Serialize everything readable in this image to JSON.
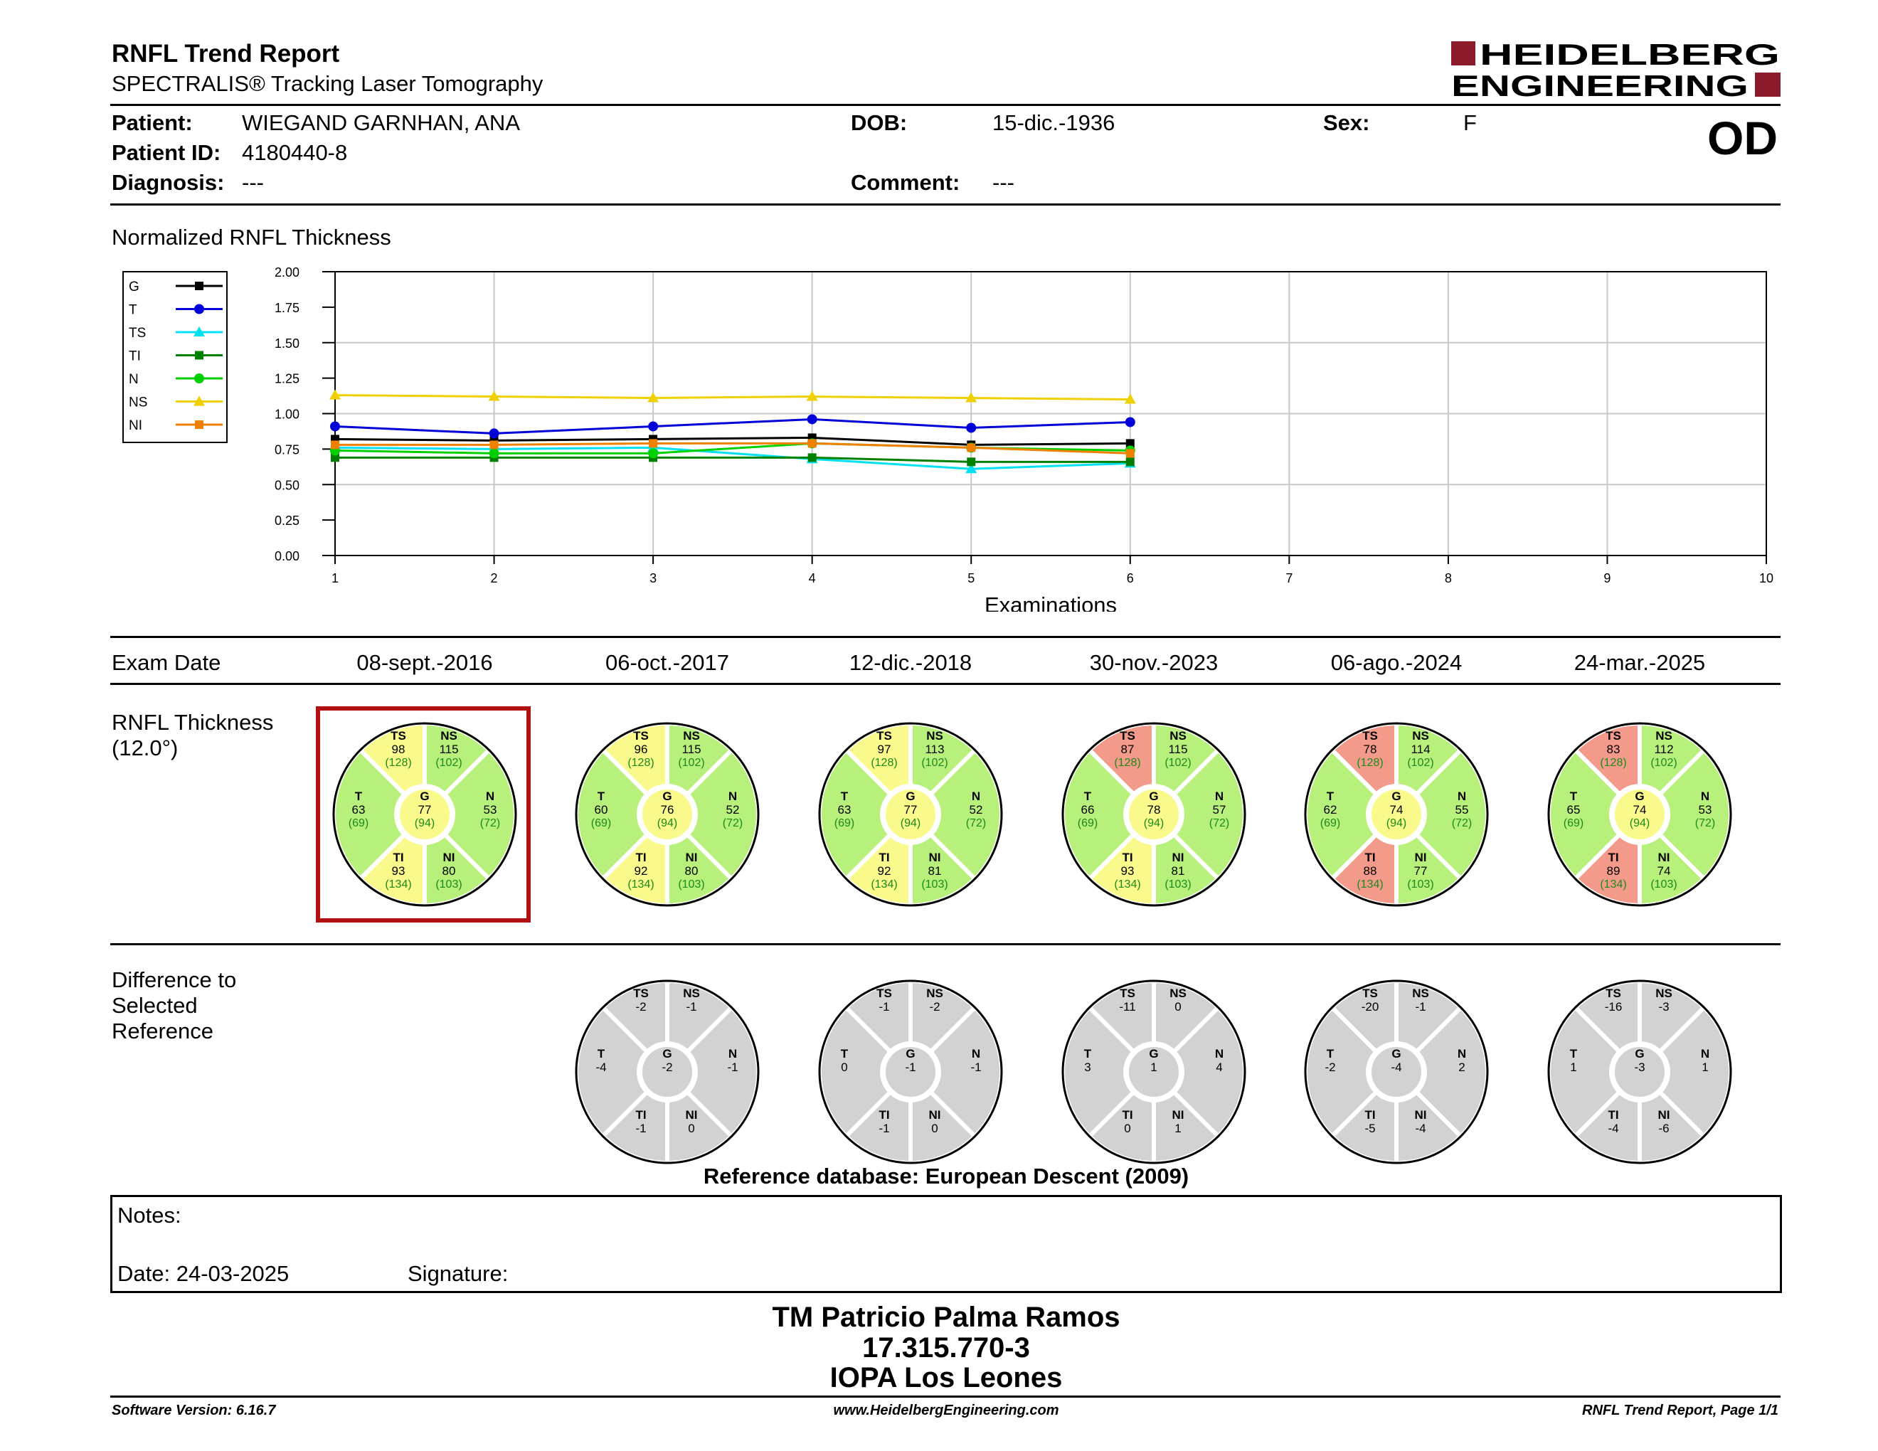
{
  "header": {
    "title": "RNFL Trend Report",
    "subtitle": "SPECTRALIS® Tracking Laser Tomography",
    "logo_line1": "HEIDELBERG",
    "logo_line2": "ENGINEERING",
    "eye": "OD"
  },
  "patient": {
    "patient_label": "Patient:",
    "patient_value": "WIEGAND GARNHAN, ANA",
    "dob_label": "DOB:",
    "dob_value": "15-dic.-1936",
    "sex_label": "Sex:",
    "sex_value": "F",
    "id_label": "Patient ID:",
    "id_value": "4180440-8",
    "diagnosis_label": "Diagnosis:",
    "diagnosis_value": "---",
    "comment_label": "Comment:",
    "comment_value": "---"
  },
  "chart_title": "Normalized RNFL Thickness",
  "chart_data": {
    "type": "line",
    "xlabel": "Examinations",
    "x": [
      1,
      2,
      3,
      4,
      5,
      6
    ],
    "xlim": [
      1,
      10
    ],
    "ylim": [
      0,
      2
    ],
    "xticks": [
      "1",
      "2",
      "3",
      "4",
      "5",
      "6",
      "7",
      "8",
      "9",
      "10"
    ],
    "yticks": [
      "0.00",
      "0.25",
      "0.50",
      "0.75",
      "1.00",
      "1.25",
      "1.50",
      "1.75",
      "2.00"
    ],
    "grid": true,
    "legend_position": "left",
    "series": [
      {
        "name": "G",
        "color": "#000000",
        "marker": "square",
        "values": [
          0.82,
          0.81,
          0.82,
          0.83,
          0.78,
          0.79
        ]
      },
      {
        "name": "T",
        "color": "#0000d8",
        "marker": "circle",
        "values": [
          0.91,
          0.86,
          0.91,
          0.96,
          0.9,
          0.94
        ]
      },
      {
        "name": "TS",
        "color": "#00e0f0",
        "marker": "triangle",
        "values": [
          0.76,
          0.75,
          0.76,
          0.68,
          0.61,
          0.65
        ]
      },
      {
        "name": "TI",
        "color": "#008000",
        "marker": "square",
        "values": [
          0.69,
          0.69,
          0.69,
          0.69,
          0.66,
          0.66
        ]
      },
      {
        "name": "N",
        "color": "#00d000",
        "marker": "circle",
        "values": [
          0.74,
          0.72,
          0.72,
          0.79,
          0.76,
          0.74
        ]
      },
      {
        "name": "NS",
        "color": "#f0d000",
        "marker": "triangle",
        "values": [
          1.13,
          1.12,
          1.11,
          1.12,
          1.11,
          1.1
        ]
      },
      {
        "name": "NI",
        "color": "#f08000",
        "marker": "square",
        "values": [
          0.78,
          0.78,
          0.79,
          0.79,
          0.76,
          0.72
        ]
      }
    ]
  },
  "exam_date_label": "Exam Date",
  "exam_dates": [
    "08-sept.-2016",
    "06-oct.-2017",
    "12-dic.-2018",
    "30-nov.-2023",
    "06-ago.-2024",
    "24-mar.-2025"
  ],
  "thickness_label_1": "RNFL Thickness",
  "thickness_label_2": "(12.0°)",
  "colors": {
    "normal": "#b8f07c",
    "borderline": "#fafa8c",
    "outside": "#f49a8a",
    "diff": "#d2d2d2",
    "selected": "#b01010",
    "ref_text": "#1a8a1a"
  },
  "thickness": [
    {
      "TS": {
        "v": "98",
        "r": "(128)",
        "s": "borderline"
      },
      "NS": {
        "v": "115",
        "r": "(102)",
        "s": "normal"
      },
      "T": {
        "v": "63",
        "r": "(69)",
        "s": "normal"
      },
      "G": {
        "v": "77",
        "r": "(94)",
        "s": "borderline"
      },
      "N": {
        "v": "53",
        "r": "(72)",
        "s": "normal"
      },
      "TI": {
        "v": "93",
        "r": "(134)",
        "s": "borderline"
      },
      "NI": {
        "v": "80",
        "r": "(103)",
        "s": "normal"
      }
    },
    {
      "TS": {
        "v": "96",
        "r": "(128)",
        "s": "borderline"
      },
      "NS": {
        "v": "115",
        "r": "(102)",
        "s": "normal"
      },
      "T": {
        "v": "60",
        "r": "(69)",
        "s": "normal"
      },
      "G": {
        "v": "76",
        "r": "(94)",
        "s": "borderline"
      },
      "N": {
        "v": "52",
        "r": "(72)",
        "s": "normal"
      },
      "TI": {
        "v": "92",
        "r": "(134)",
        "s": "borderline"
      },
      "NI": {
        "v": "80",
        "r": "(103)",
        "s": "normal"
      }
    },
    {
      "TS": {
        "v": "97",
        "r": "(128)",
        "s": "borderline"
      },
      "NS": {
        "v": "113",
        "r": "(102)",
        "s": "normal"
      },
      "T": {
        "v": "63",
        "r": "(69)",
        "s": "normal"
      },
      "G": {
        "v": "77",
        "r": "(94)",
        "s": "borderline"
      },
      "N": {
        "v": "52",
        "r": "(72)",
        "s": "normal"
      },
      "TI": {
        "v": "92",
        "r": "(134)",
        "s": "borderline"
      },
      "NI": {
        "v": "81",
        "r": "(103)",
        "s": "normal"
      }
    },
    {
      "TS": {
        "v": "87",
        "r": "(128)",
        "s": "outside"
      },
      "NS": {
        "v": "115",
        "r": "(102)",
        "s": "normal"
      },
      "T": {
        "v": "66",
        "r": "(69)",
        "s": "normal"
      },
      "G": {
        "v": "78",
        "r": "(94)",
        "s": "borderline"
      },
      "N": {
        "v": "57",
        "r": "(72)",
        "s": "normal"
      },
      "TI": {
        "v": "93",
        "r": "(134)",
        "s": "borderline"
      },
      "NI": {
        "v": "81",
        "r": "(103)",
        "s": "normal"
      }
    },
    {
      "TS": {
        "v": "78",
        "r": "(128)",
        "s": "outside"
      },
      "NS": {
        "v": "114",
        "r": "(102)",
        "s": "normal"
      },
      "T": {
        "v": "62",
        "r": "(69)",
        "s": "normal"
      },
      "G": {
        "v": "74",
        "r": "(94)",
        "s": "borderline"
      },
      "N": {
        "v": "55",
        "r": "(72)",
        "s": "normal"
      },
      "TI": {
        "v": "88",
        "r": "(134)",
        "s": "outside"
      },
      "NI": {
        "v": "77",
        "r": "(103)",
        "s": "normal"
      }
    },
    {
      "TS": {
        "v": "83",
        "r": "(128)",
        "s": "outside"
      },
      "NS": {
        "v": "112",
        "r": "(102)",
        "s": "normal"
      },
      "T": {
        "v": "65",
        "r": "(69)",
        "s": "normal"
      },
      "G": {
        "v": "74",
        "r": "(94)",
        "s": "borderline"
      },
      "N": {
        "v": "53",
        "r": "(72)",
        "s": "normal"
      },
      "TI": {
        "v": "89",
        "r": "(134)",
        "s": "outside"
      },
      "NI": {
        "v": "74",
        "r": "(103)",
        "s": "normal"
      }
    }
  ],
  "difference_label_1": "Difference to",
  "difference_label_2": "Selected",
  "difference_label_3": "Reference",
  "differences": [
    null,
    {
      "TS": "-2",
      "NS": "-1",
      "T": "-4",
      "G": "-2",
      "N": "-1",
      "TI": "-1",
      "NI": "0"
    },
    {
      "TS": "-1",
      "NS": "-2",
      "T": "0",
      "G": "-1",
      "N": "-1",
      "TI": "-1",
      "NI": "0"
    },
    {
      "TS": "-11",
      "NS": "0",
      "T": "3",
      "G": "1",
      "N": "4",
      "TI": "0",
      "NI": "1"
    },
    {
      "TS": "-20",
      "NS": "-1",
      "T": "-2",
      "G": "-4",
      "N": "2",
      "TI": "-5",
      "NI": "-4"
    },
    {
      "TS": "-16",
      "NS": "-3",
      "T": "1",
      "G": "-3",
      "N": "1",
      "TI": "-4",
      "NI": "-6"
    }
  ],
  "reference_db": "Reference database: European Descent (2009)",
  "notes": {
    "notes_label": "Notes:",
    "date_label": "Date: 24-03-2025",
    "signature_label": "Signature:"
  },
  "signature_block": {
    "line1": "TM Patricio Palma Ramos",
    "line2": "17.315.770-3",
    "line3": "IOPA Los Leones"
  },
  "footer": {
    "software": "Software Version: 6.16.7",
    "website": "www.HeidelbergEngineering.com",
    "page": "RNFL Trend Report, Page 1/1"
  }
}
